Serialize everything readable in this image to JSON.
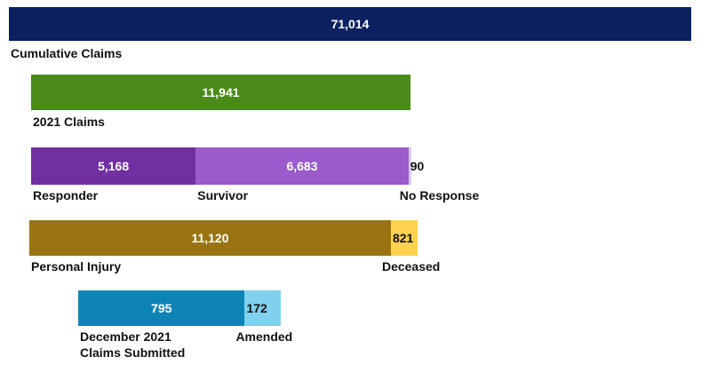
{
  "rows": [
    {
      "segments": [
        {
          "value": 71014,
          "value_label": "71,014",
          "label": "Cumulative Claims",
          "color": "#0b2160"
        }
      ]
    },
    {
      "segments": [
        {
          "value": 11941,
          "value_label": "11,941",
          "label": "2021 Claims",
          "color": "#4a8a18"
        }
      ]
    },
    {
      "segments": [
        {
          "value": 5168,
          "value_label": "5,168",
          "label": "Responder",
          "color": "#7030a0"
        },
        {
          "value": 6683,
          "value_label": "6,683",
          "label": "Survivor",
          "color": "#9b5bcd"
        },
        {
          "value": 90,
          "value_label": "90",
          "label": "No Response",
          "color": "#dcc6f2"
        }
      ]
    },
    {
      "segments": [
        {
          "value": 11120,
          "value_label": "11,120",
          "label": "Personal Injury",
          "color": "#9a7412"
        },
        {
          "value": 821,
          "value_label": "821",
          "label": "Deceased",
          "color": "#ffd250"
        }
      ]
    },
    {
      "segments": [
        {
          "value": 795,
          "value_label": "795",
          "label": "December 2021 Claims Submitted",
          "color": "#0e84b6"
        },
        {
          "value": 172,
          "value_label": "172",
          "label": "Amended",
          "color": "#80d0ef"
        }
      ]
    }
  ]
}
